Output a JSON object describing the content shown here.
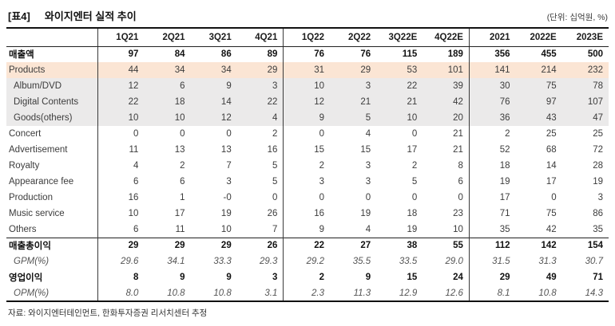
{
  "title": {
    "tag": "[표4]",
    "text": "와이지엔터 실적 추이"
  },
  "unit_note": "(단위: 십억원, %)",
  "source_note": "자료: 와이지엔터테인먼트, 한화투자증권 리서치센터 추정",
  "colors": {
    "highlight_peach": "#fbe5d4",
    "highlight_gray": "#ebeaea",
    "border_heavy": "#111111",
    "border_thin": "#222222"
  },
  "table": {
    "columns": [
      "",
      "1Q21",
      "2Q21",
      "3Q21",
      "4Q21",
      "1Q22",
      "2Q22",
      "3Q22E",
      "4Q22E",
      "2021",
      "2022E",
      "2023E"
    ],
    "rows": [
      {
        "label": "매출액",
        "bold": true,
        "bg": null,
        "indent": false,
        "italic": false,
        "topline": false,
        "values": [
          "97",
          "84",
          "86",
          "89",
          "76",
          "76",
          "115",
          "189",
          "356",
          "455",
          "500"
        ]
      },
      {
        "label": "Products",
        "bold": false,
        "bg": "peach",
        "indent": false,
        "italic": false,
        "topline": false,
        "values": [
          "44",
          "34",
          "34",
          "29",
          "31",
          "29",
          "53",
          "101",
          "141",
          "214",
          "232"
        ]
      },
      {
        "label": "Album/DVD",
        "bold": false,
        "bg": "gray",
        "indent": true,
        "italic": false,
        "topline": false,
        "values": [
          "12",
          "6",
          "9",
          "3",
          "10",
          "3",
          "22",
          "39",
          "30",
          "75",
          "78"
        ]
      },
      {
        "label": "Digital Contents",
        "bold": false,
        "bg": "gray",
        "indent": true,
        "italic": false,
        "topline": false,
        "values": [
          "22",
          "18",
          "14",
          "22",
          "12",
          "21",
          "21",
          "42",
          "76",
          "97",
          "107"
        ]
      },
      {
        "label": "Goods(others)",
        "bold": false,
        "bg": "gray",
        "indent": true,
        "italic": false,
        "topline": false,
        "values": [
          "10",
          "10",
          "12",
          "4",
          "9",
          "5",
          "10",
          "20",
          "36",
          "43",
          "47"
        ]
      },
      {
        "label": "Concert",
        "bold": false,
        "bg": null,
        "indent": false,
        "italic": false,
        "topline": false,
        "values": [
          "0",
          "0",
          "0",
          "2",
          "0",
          "4",
          "0",
          "21",
          "2",
          "25",
          "25"
        ]
      },
      {
        "label": "Advertisement",
        "bold": false,
        "bg": null,
        "indent": false,
        "italic": false,
        "topline": false,
        "values": [
          "11",
          "13",
          "13",
          "16",
          "15",
          "15",
          "17",
          "21",
          "52",
          "68",
          "72"
        ]
      },
      {
        "label": "Royalty",
        "bold": false,
        "bg": null,
        "indent": false,
        "italic": false,
        "topline": false,
        "values": [
          "4",
          "2",
          "7",
          "5",
          "2",
          "3",
          "2",
          "8",
          "18",
          "14",
          "28"
        ]
      },
      {
        "label": "Appearance fee",
        "bold": false,
        "bg": null,
        "indent": false,
        "italic": false,
        "topline": false,
        "values": [
          "6",
          "6",
          "3",
          "5",
          "3",
          "3",
          "5",
          "6",
          "19",
          "17",
          "19"
        ]
      },
      {
        "label": "Production",
        "bold": false,
        "bg": null,
        "indent": false,
        "italic": false,
        "topline": false,
        "values": [
          "16",
          "1",
          "-0",
          "0",
          "0",
          "0",
          "0",
          "0",
          "17",
          "0",
          "3"
        ]
      },
      {
        "label": "Music service",
        "bold": false,
        "bg": null,
        "indent": false,
        "italic": false,
        "topline": false,
        "values": [
          "10",
          "17",
          "19",
          "26",
          "16",
          "19",
          "18",
          "23",
          "71",
          "75",
          "86"
        ]
      },
      {
        "label": "Others",
        "bold": false,
        "bg": null,
        "indent": false,
        "italic": false,
        "topline": false,
        "values": [
          "6",
          "11",
          "10",
          "7",
          "9",
          "4",
          "19",
          "10",
          "35",
          "42",
          "35"
        ]
      },
      {
        "label": "매출총이익",
        "bold": true,
        "bg": null,
        "indent": false,
        "italic": false,
        "topline": true,
        "values": [
          "29",
          "29",
          "29",
          "26",
          "22",
          "27",
          "38",
          "55",
          "112",
          "142",
          "154"
        ]
      },
      {
        "label": "GPM(%)",
        "bold": false,
        "bg": null,
        "indent": true,
        "italic": true,
        "topline": false,
        "values": [
          "29.6",
          "34.1",
          "33.3",
          "29.3",
          "29.2",
          "35.5",
          "33.5",
          "29.0",
          "31.5",
          "31.3",
          "30.7"
        ]
      },
      {
        "label": "영업이익",
        "bold": true,
        "bg": null,
        "indent": false,
        "italic": false,
        "topline": false,
        "values": [
          "8",
          "9",
          "9",
          "3",
          "2",
          "9",
          "15",
          "24",
          "29",
          "49",
          "71"
        ]
      },
      {
        "label": "OPM(%)",
        "bold": false,
        "bg": null,
        "indent": true,
        "italic": true,
        "topline": false,
        "values": [
          "8.0",
          "10.8",
          "10.8",
          "3.1",
          "2.3",
          "11.3",
          "12.9",
          "12.6",
          "8.1",
          "10.8",
          "14.3"
        ]
      }
    ]
  }
}
